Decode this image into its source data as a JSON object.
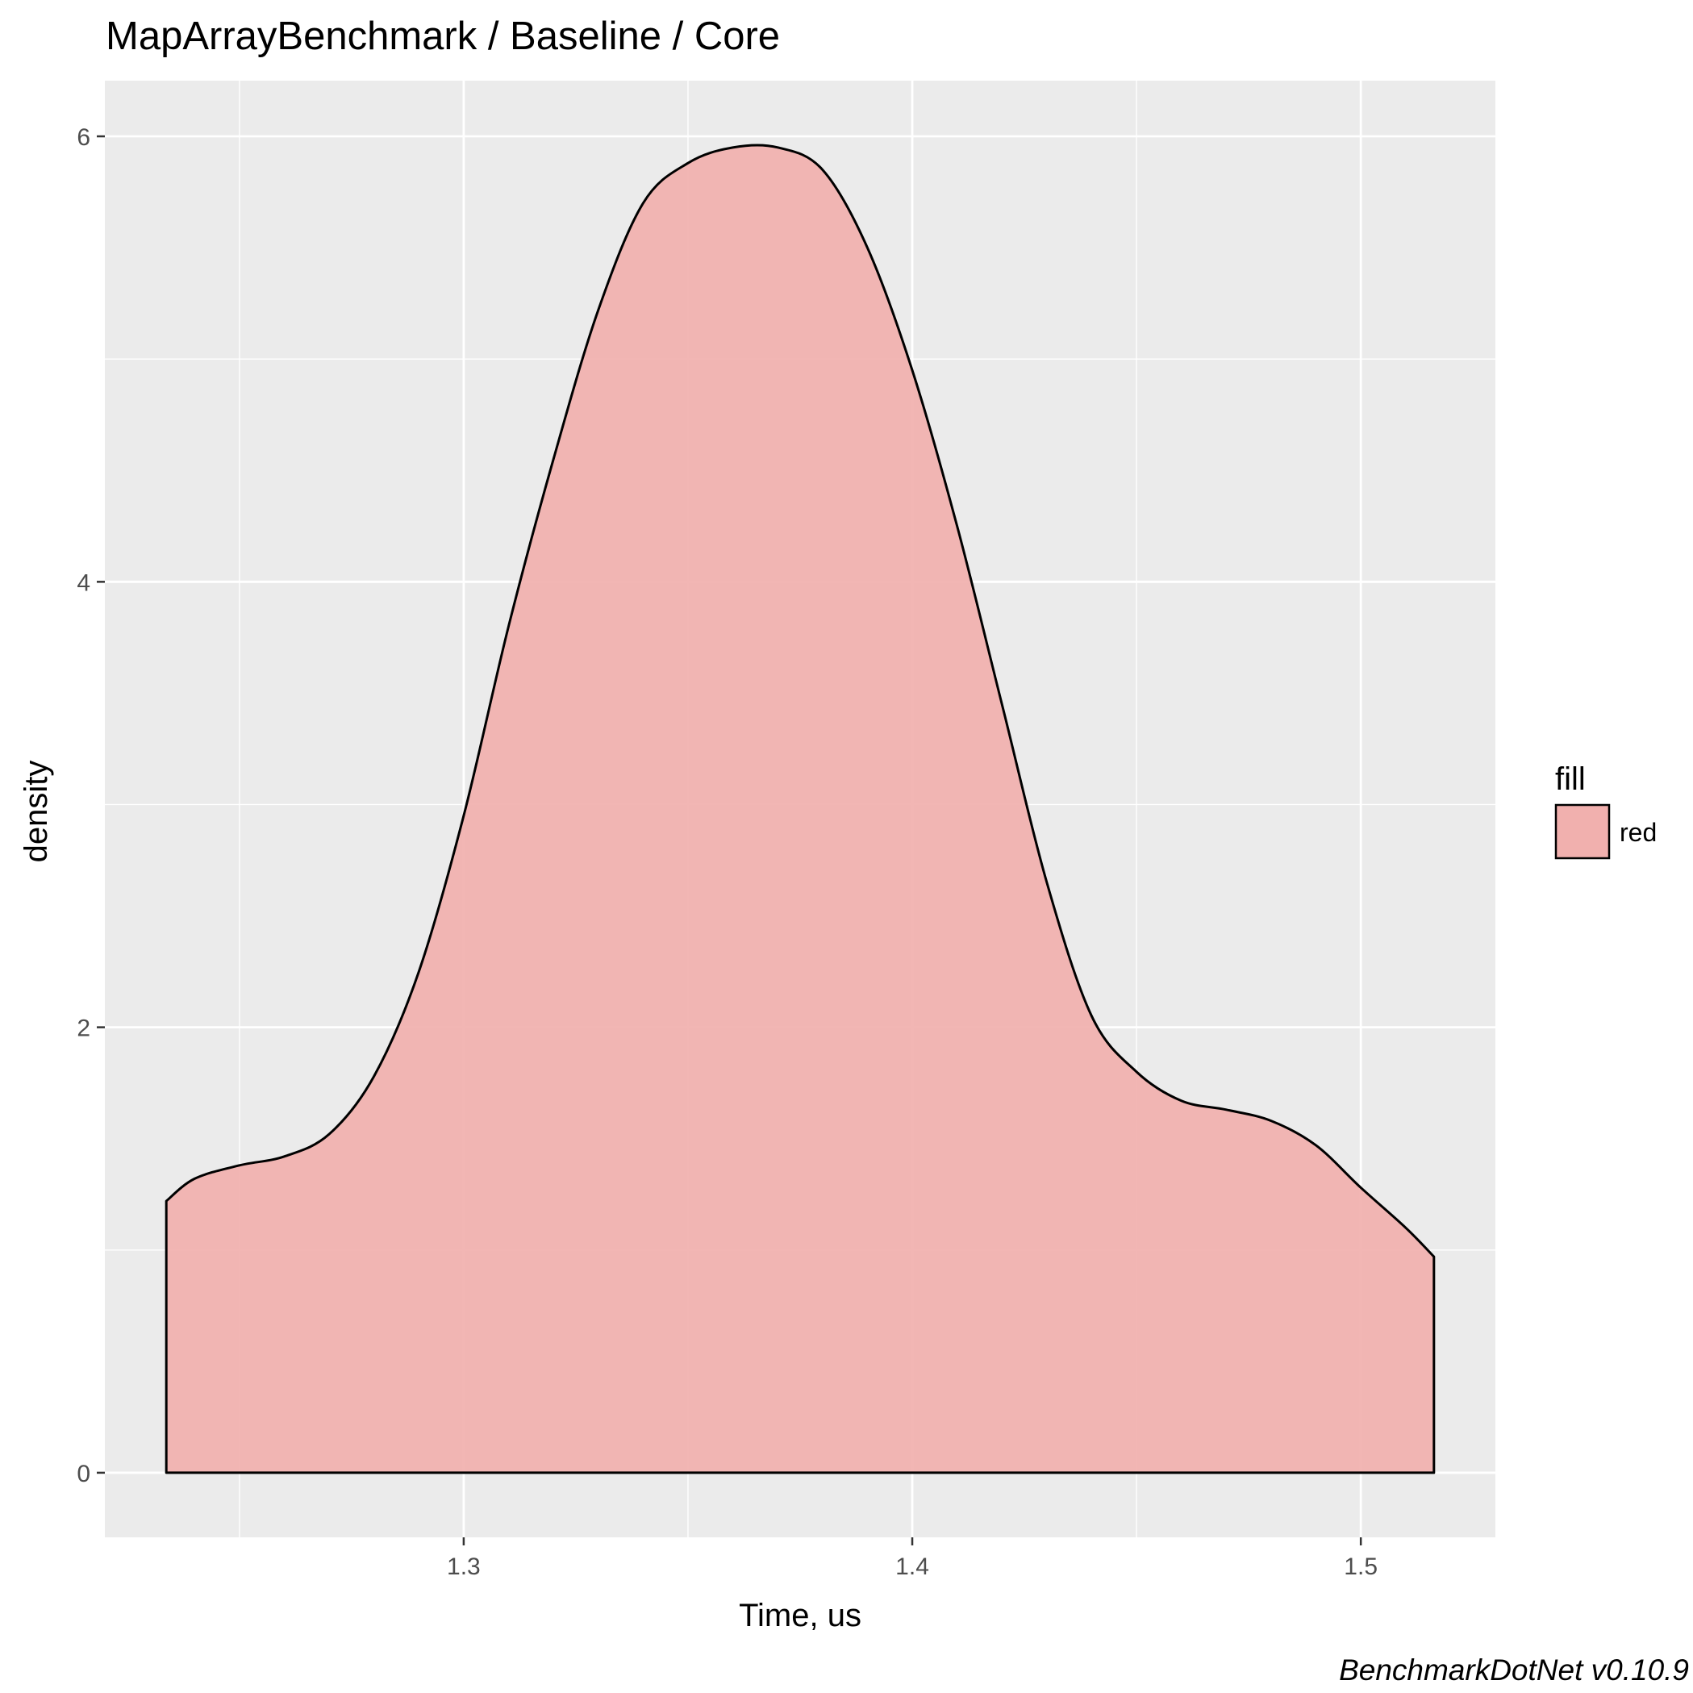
{
  "chart_data": {
    "type": "area",
    "title": "MapArrayBenchmark / Baseline / Core",
    "xlabel": "Time, us",
    "ylabel": "density",
    "caption": "BenchmarkDotNet v0.10.9",
    "xlim": [
      1.22,
      1.53
    ],
    "ylim": [
      -0.29,
      6.25
    ],
    "x_ticks": [
      1.3,
      1.4,
      1.5
    ],
    "x_tick_labels": [
      "1.3",
      "1.4",
      "1.5"
    ],
    "y_ticks": [
      0,
      2,
      4,
      6
    ],
    "y_tick_labels": [
      "0",
      "2",
      "4",
      "6"
    ],
    "grid": true,
    "legend": {
      "title": "fill",
      "position": "right",
      "entries": [
        {
          "label": "red",
          "color": "#F1B0AE"
        }
      ]
    },
    "series": [
      {
        "name": "red",
        "color": "#F1B0AE",
        "x": [
          1.2337,
          1.24,
          1.25,
          1.26,
          1.27,
          1.28,
          1.29,
          1.3,
          1.31,
          1.32,
          1.33,
          1.34,
          1.35,
          1.36,
          1.37,
          1.38,
          1.39,
          1.4,
          1.41,
          1.42,
          1.43,
          1.44,
          1.45,
          1.46,
          1.47,
          1.48,
          1.49,
          1.5,
          1.51,
          1.5163
        ],
        "y": [
          1.22,
          1.32,
          1.38,
          1.42,
          1.52,
          1.78,
          2.25,
          2.95,
          3.8,
          4.55,
          5.22,
          5.7,
          5.88,
          5.95,
          5.95,
          5.85,
          5.5,
          4.95,
          4.25,
          3.45,
          2.65,
          2.05,
          1.8,
          1.67,
          1.63,
          1.58,
          1.47,
          1.28,
          1.1,
          0.97
        ]
      }
    ],
    "colors": {
      "panel_background": "#EBEBEB",
      "grid": "#FFFFFF",
      "fill": "#F1B0AE",
      "outline": "#000000"
    }
  }
}
